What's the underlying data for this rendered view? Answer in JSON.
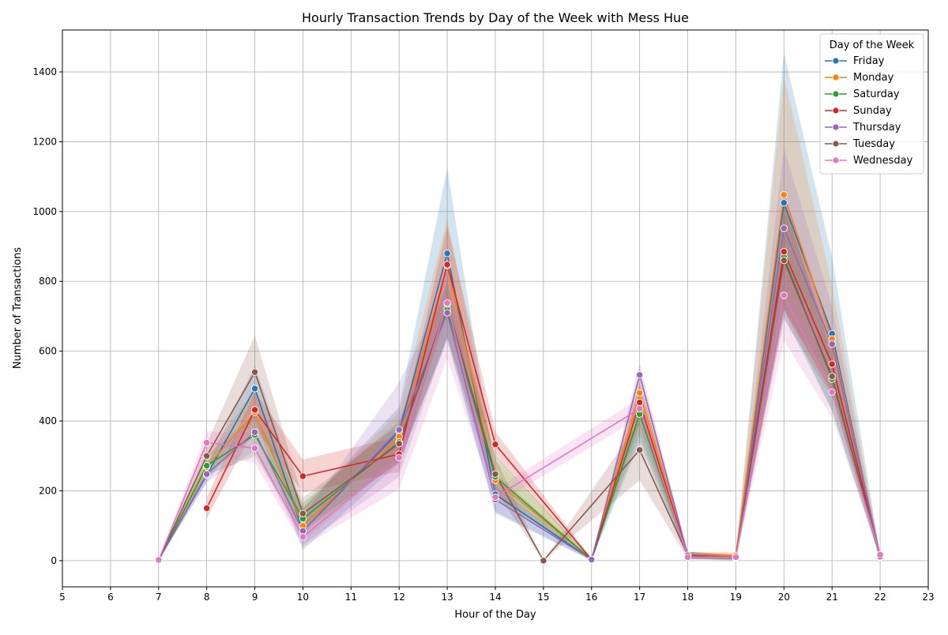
{
  "chart_data": {
    "type": "line",
    "title": "Hourly Transaction Trends by Day of the Week with Mess Hue",
    "xlabel": "Hour of the Day",
    "ylabel": "Number of Transactions",
    "xlim": [
      5,
      23
    ],
    "ylim": [
      -75,
      1520
    ],
    "xticks": [
      5,
      6,
      7,
      8,
      9,
      10,
      11,
      12,
      13,
      14,
      15,
      16,
      17,
      18,
      19,
      20,
      21,
      22,
      23
    ],
    "yticks": [
      0,
      200,
      400,
      600,
      800,
      1000,
      1200,
      1400
    ],
    "grid": true,
    "legend": {
      "title": "Day of the Week",
      "position": "top-right"
    },
    "series": [
      {
        "name": "Friday",
        "color": "#1f77b4",
        "x": [
          7,
          8,
          9,
          10,
          12,
          13,
          14,
          16,
          17,
          18,
          19,
          20,
          21,
          22
        ],
        "y": [
          2,
          245,
          493,
          85,
          370,
          880,
          190,
          3,
          420,
          15,
          8,
          1025,
          650,
          10
        ],
        "low": [
          0,
          225,
          410,
          30,
          280,
          630,
          140,
          0,
          340,
          5,
          0,
          700,
          430,
          3
        ],
        "high": [
          4,
          270,
          560,
          150,
          440,
          1125,
          250,
          6,
          500,
          25,
          15,
          1455,
          870,
          18
        ]
      },
      {
        "name": "Monday",
        "color": "#ff7f0e",
        "x": [
          7,
          8,
          9,
          10,
          12,
          13,
          14,
          16,
          17,
          18,
          19,
          20,
          21,
          22
        ],
        "y": [
          2,
          268,
          425,
          100,
          355,
          845,
          230,
          3,
          480,
          15,
          15,
          1048,
          635,
          12
        ],
        "low": [
          0,
          240,
          360,
          55,
          290,
          700,
          175,
          0,
          410,
          6,
          8,
          720,
          480,
          4
        ],
        "high": [
          4,
          300,
          490,
          150,
          425,
          980,
          290,
          6,
          540,
          25,
          25,
          1390,
          790,
          20
        ]
      },
      {
        "name": "Saturday",
        "color": "#2ca02c",
        "x": [
          7,
          8,
          9,
          10,
          12,
          13,
          14,
          16,
          17,
          18,
          19,
          20,
          21,
          22
        ],
        "y": [
          2,
          272,
          360,
          120,
          340,
          720,
          240,
          3,
          420,
          12,
          8,
          870,
          520,
          10
        ],
        "low": [
          0,
          245,
          300,
          80,
          285,
          640,
          185,
          0,
          360,
          5,
          2,
          720,
          430,
          3
        ],
        "high": [
          4,
          300,
          420,
          165,
          400,
          800,
          300,
          6,
          480,
          20,
          15,
          1020,
          610,
          18
        ]
      },
      {
        "name": "Sunday",
        "color": "#d62728",
        "x": [
          8,
          9,
          10,
          12,
          13,
          14,
          16,
          17,
          18,
          19,
          20,
          21,
          22
        ],
        "y": [
          150,
          432,
          242,
          305,
          848,
          333,
          3,
          453,
          15,
          10,
          885,
          563,
          15
        ],
        "low": [
          120,
          380,
          195,
          255,
          730,
          295,
          0,
          390,
          6,
          4,
          720,
          480,
          6
        ],
        "high": [
          180,
          485,
          290,
          355,
          960,
          370,
          6,
          510,
          25,
          18,
          1050,
          650,
          25
        ]
      },
      {
        "name": "Thursday",
        "color": "#9467bd",
        "x": [
          7,
          8,
          9,
          10,
          12,
          13,
          14,
          16,
          17,
          18,
          19,
          20,
          21,
          22
        ],
        "y": [
          2,
          248,
          368,
          85,
          375,
          710,
          175,
          3,
          532,
          15,
          8,
          952,
          620,
          12
        ],
        "low": [
          0,
          225,
          315,
          45,
          240,
          640,
          135,
          0,
          500,
          5,
          2,
          720,
          510,
          4
        ],
        "high": [
          4,
          272,
          420,
          125,
          510,
          780,
          215,
          6,
          565,
          25,
          15,
          1180,
          730,
          20
        ]
      },
      {
        "name": "Tuesday",
        "color": "#8c564b",
        "x": [
          7,
          8,
          9,
          10,
          12,
          13,
          14,
          15,
          17,
          18,
          19,
          20,
          21,
          22
        ],
        "y": [
          2,
          300,
          540,
          135,
          335,
          735,
          248,
          0,
          317,
          15,
          10,
          860,
          528,
          12
        ],
        "low": [
          0,
          265,
          435,
          90,
          280,
          640,
          200,
          0,
          230,
          5,
          3,
          690,
          470,
          4
        ],
        "high": [
          4,
          335,
          645,
          180,
          390,
          830,
          295,
          0,
          400,
          25,
          18,
          1030,
          590,
          20
        ]
      },
      {
        "name": "Wednesday",
        "color": "#e377c2",
        "x": [
          7,
          8,
          9,
          10,
          12,
          13,
          14,
          17,
          18,
          19,
          20,
          21,
          22
        ],
        "y": [
          2,
          338,
          322,
          68,
          295,
          738,
          182,
          435,
          10,
          10,
          760,
          483,
          17
        ],
        "low": [
          0,
          305,
          280,
          40,
          205,
          580,
          160,
          410,
          3,
          3,
          630,
          410,
          8
        ],
        "high": [
          4,
          370,
          365,
          100,
          385,
          895,
          205,
          465,
          18,
          18,
          890,
          555,
          25
        ]
      }
    ]
  }
}
